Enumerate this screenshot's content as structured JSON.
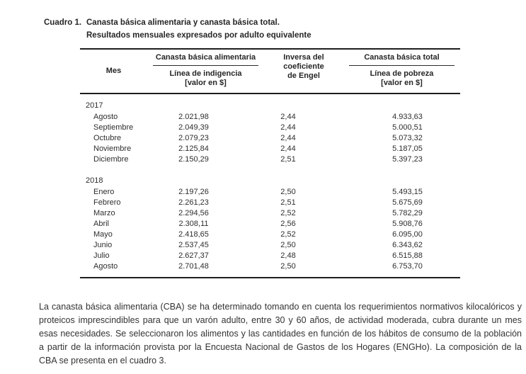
{
  "title": {
    "label": "Cuadro 1.",
    "line1": "Canasta básica alimentaria y canasta básica total.",
    "line2": "Resultados mensuales expresados por adulto equivalente"
  },
  "table": {
    "columns": {
      "mes": "Mes",
      "cba_group": "Canasta básica alimentaria",
      "cba_sub1": "Línea de indigencia",
      "cba_sub2": "[valor en $]",
      "engel_line1": "Inversa del",
      "engel_line2": "coeficiente",
      "engel_line3": "de Engel",
      "cbt_group": "Canasta básica total",
      "cbt_sub1": "Línea de pobreza",
      "cbt_sub2": "[valor en $]"
    },
    "groups": [
      {
        "year": "2017",
        "rows": [
          {
            "mes": "Agosto",
            "cba": "2.021,98",
            "engel": "2,44",
            "cbt": "4.933,63"
          },
          {
            "mes": "Septiembre",
            "cba": "2.049,39",
            "engel": "2,44",
            "cbt": "5.000,51"
          },
          {
            "mes": "Octubre",
            "cba": "2.079,23",
            "engel": "2,44",
            "cbt": "5.073,32"
          },
          {
            "mes": "Noviembre",
            "cba": "2.125,84",
            "engel": "2,44",
            "cbt": "5.187,05"
          },
          {
            "mes": "Diciembre",
            "cba": "2.150,29",
            "engel": "2,51",
            "cbt": "5.397,23"
          }
        ]
      },
      {
        "year": "2018",
        "rows": [
          {
            "mes": "Enero",
            "cba": "2.197,26",
            "engel": "2,50",
            "cbt": "5.493,15"
          },
          {
            "mes": "Febrero",
            "cba": "2.261,23",
            "engel": "2,51",
            "cbt": "5.675,69"
          },
          {
            "mes": "Marzo",
            "cba": "2.294,56",
            "engel": "2,52",
            "cbt": "5.782,29"
          },
          {
            "mes": "Abril",
            "cba": "2.308,11",
            "engel": "2,56",
            "cbt": "5.908,76"
          },
          {
            "mes": "Mayo",
            "cba": "2.418,65",
            "engel": "2,52",
            "cbt": "6.095,00"
          },
          {
            "mes": "Junio",
            "cba": "2.537,45",
            "engel": "2,50",
            "cbt": "6.343,62"
          },
          {
            "mes": "Julio",
            "cba": "2.627,37",
            "engel": "2,48",
            "cbt": "6.515,88"
          },
          {
            "mes": "Agosto",
            "cba": "2.701,48",
            "engel": "2,50",
            "cbt": "6.753,70"
          }
        ]
      }
    ]
  },
  "footnote": "La canasta básica alimentaria (CBA) se ha determinado tomando en cuenta los requerimientos normativos kilocalóricos y proteicos imprescindibles para que un varón adulto, entre 30 y 60 años, de actividad moderada, cubra durante un mes esas necesidades. Se seleccionaron los alimentos y las cantidades en función de los hábitos de consumo de la población a partir de la información provista por la Encuesta Nacional de Gastos de los Hogares (ENGHo). La composición de la CBA se presenta en el cuadro 3.",
  "colors": {
    "text": "#2e2e2e",
    "rule": "#1e1e1e",
    "background": "#ffffff"
  }
}
